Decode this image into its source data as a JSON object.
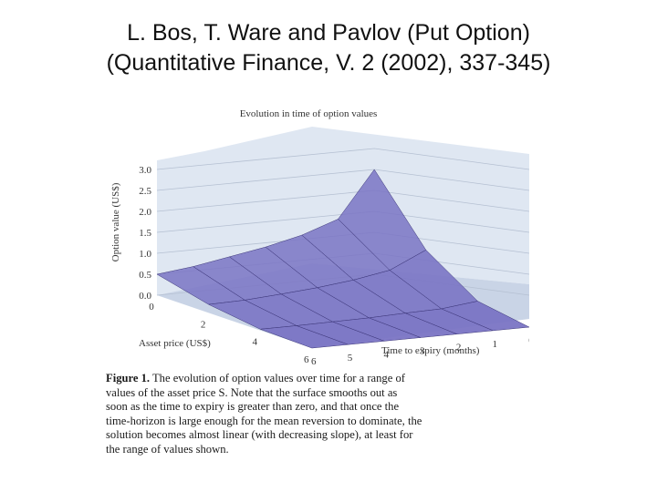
{
  "slide": {
    "title_line1": "L. Bos, T. Ware and Pavlov (Put Option)",
    "title_line2": "(Quantitative Finance, V. 2 (2002), 337-345)"
  },
  "figure": {
    "caption_label": "Figure 1.",
    "caption_lines": [
      "The evolution of option values over time for a range of",
      "values of the asset price S.  Note that the surface smooths out as",
      "soon as the time to expiry is greater than zero, and that once the",
      "time-horizon is large enough for the mean reversion to dominate, the",
      "solution becomes almost linear (with decreasing slope), at least for",
      "the range of values shown."
    ]
  },
  "chart_data": {
    "type": "surface",
    "title": "Evolution in time of option values",
    "zlabel": "Option value (US$)",
    "xlabel": "Asset price (US$)",
    "ylabel": "Time to expiry (months)",
    "z_ticks": [
      "0.0",
      "0.5",
      "1.0",
      "1.5",
      "2.0",
      "2.5",
      "3.0"
    ],
    "x_ticks": [
      "0",
      "2",
      "4",
      "6"
    ],
    "y_ticks": [
      "0",
      "1",
      "2",
      "3",
      "4",
      "5",
      "6"
    ],
    "zlim": [
      0,
      3
    ],
    "xlim": [
      0,
      6
    ],
    "ylim": [
      0,
      6
    ],
    "colors": {
      "surface": "#7a74c4",
      "surface_edge": "#3b3578",
      "panel": "#dfe7f2"
    },
    "surface": {
      "x": [
        0,
        2,
        4,
        6
      ],
      "t": [
        0,
        1,
        2,
        3,
        4,
        5,
        6
      ],
      "values_by_t": [
        [
          2.5,
          1.0,
          0.2,
          0.0
        ],
        [
          1.4,
          0.6,
          0.1,
          0.0
        ],
        [
          1.1,
          0.45,
          0.08,
          0.0
        ],
        [
          0.9,
          0.35,
          0.05,
          0.0
        ],
        [
          0.75,
          0.28,
          0.04,
          0.0
        ],
        [
          0.6,
          0.22,
          0.03,
          0.0
        ],
        [
          0.5,
          0.2,
          0.03,
          0.0
        ]
      ]
    }
  }
}
